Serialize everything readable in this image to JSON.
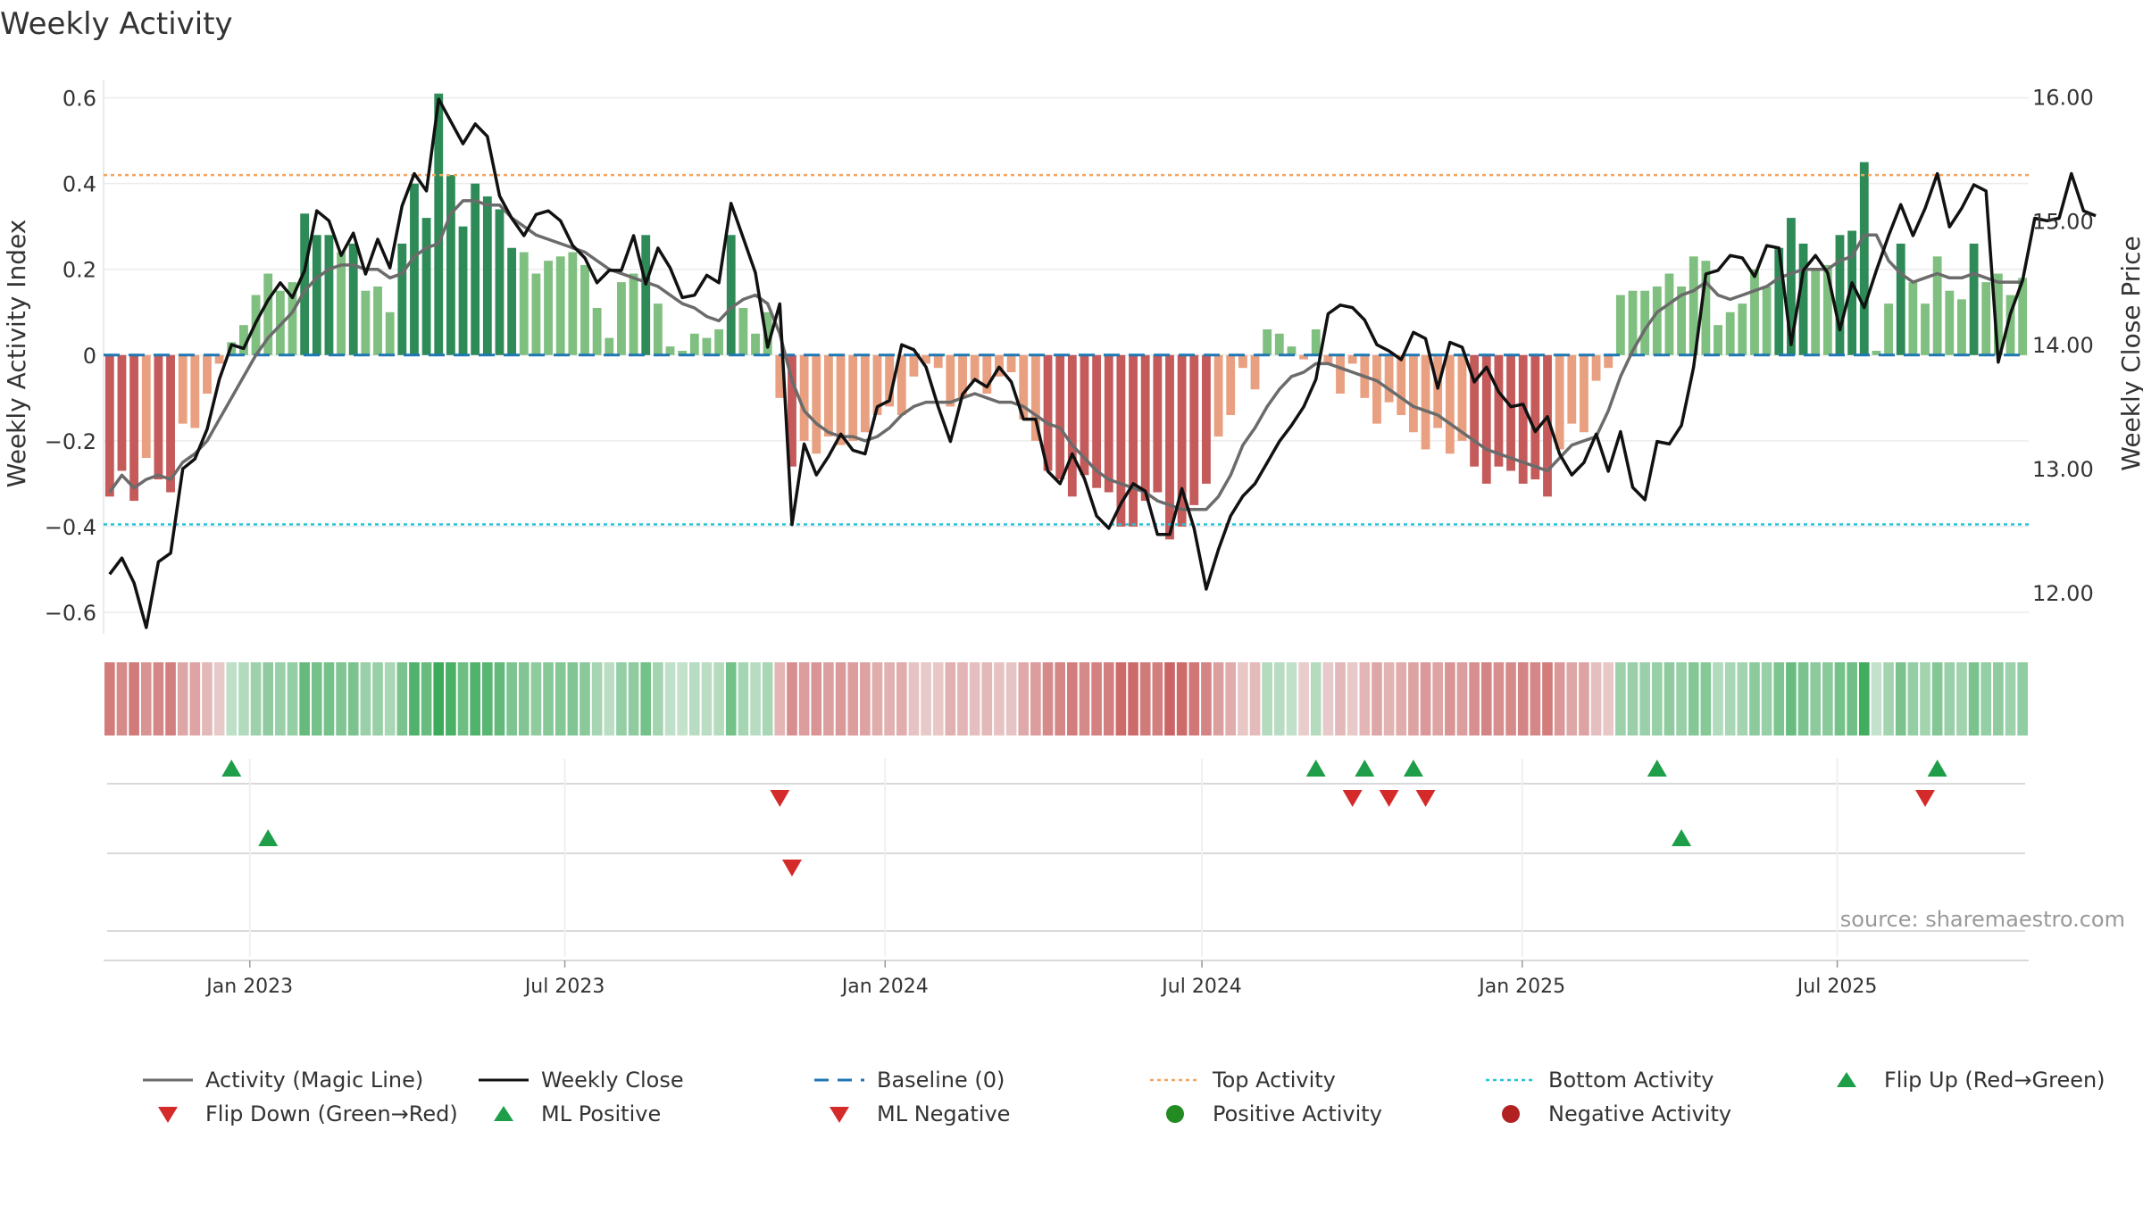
{
  "title": "Weekly Activity",
  "source": "source: sharemaestro.com",
  "colors": {
    "pos_dark": "#2e8b57",
    "pos_light": "#7fbf7f",
    "neg_dark": "#c45a5a",
    "neg_light": "#e8a080",
    "close": "#111111",
    "magic": "#6b6b6b",
    "top": "#f4a460",
    "bottom": "#22c5d6",
    "baseline": "#1f77b4",
    "flip_up": "#1e9e48",
    "flip_down": "#d42a2a",
    "pos_dot": "#228b22",
    "neg_dot": "#b22222"
  },
  "legend": [
    {
      "label": "Activity (Magic Line)",
      "symbol": "magic-line"
    },
    {
      "label": "Weekly Close",
      "symbol": "close-line"
    },
    {
      "label": "Baseline (0)",
      "symbol": "baseline-dash"
    },
    {
      "label": "Top Activity",
      "symbol": "top-dotted"
    },
    {
      "label": "Bottom Activity",
      "symbol": "bottom-dotted"
    },
    {
      "label": "Flip Up (Red→Green)",
      "symbol": "triangle-up"
    },
    {
      "label": "Flip Down (Green→Red)",
      "symbol": "triangle-down"
    },
    {
      "label": "ML Positive",
      "symbol": "triangle-up"
    },
    {
      "label": "ML Negative",
      "symbol": "triangle-down"
    },
    {
      "label": "Positive Activity",
      "symbol": "dot-green"
    },
    {
      "label": "Negative Activity",
      "symbol": "dot-red"
    }
  ],
  "chart_data": {
    "type": "bar",
    "title": "Weekly Activity",
    "ylabel": "Weekly Activity Index",
    "y2label": "Weekly Close Price",
    "ylim": [
      -0.65,
      0.62
    ],
    "y2lim": [
      11.67,
      16.06
    ],
    "yticks": [
      0.6,
      0.4,
      0.2,
      0,
      -0.2,
      -0.4,
      -0.6
    ],
    "ytick_labels": [
      "0.6",
      "0.4",
      "0.2",
      "0",
      "−0.2",
      "−0.4",
      "−0.6"
    ],
    "y2ticks": [
      16,
      15,
      14,
      13,
      12
    ],
    "y2tick_labels": [
      "16.00",
      "15.00",
      "14.00",
      "13.00",
      "12.00"
    ],
    "start_date": "2022-10-09",
    "weeks": 158,
    "x_ticks": [
      {
        "label": "Jan 2023",
        "date": "2023-01-01"
      },
      {
        "label": "Jul 2023",
        "date": "2023-07-01"
      },
      {
        "label": "Jan 2024",
        "date": "2024-01-01"
      },
      {
        "label": "Jul 2024",
        "date": "2024-07-01"
      },
      {
        "label": "Jan 2025",
        "date": "2025-01-01"
      },
      {
        "label": "Jul 2025",
        "date": "2025-07-01"
      }
    ],
    "top_activity": 0.42,
    "bottom_activity": -0.395,
    "baseline": 0,
    "activity": [
      -0.33,
      -0.27,
      -0.34,
      -0.24,
      -0.29,
      -0.32,
      -0.16,
      -0.17,
      -0.09,
      -0.02,
      0.03,
      0.07,
      0.14,
      0.19,
      0.15,
      0.17,
      0.33,
      0.28,
      0.28,
      0.24,
      0.26,
      0.15,
      0.16,
      0.1,
      0.26,
      0.4,
      0.32,
      0.61,
      0.42,
      0.3,
      0.4,
      0.37,
      0.34,
      0.25,
      0.24,
      0.19,
      0.22,
      0.23,
      0.24,
      0.21,
      0.11,
      0.04,
      0.17,
      0.19,
      0.28,
      0.12,
      0.02,
      0.01,
      0.05,
      0.04,
      0.06,
      0.28,
      0.11,
      0.05,
      0.1,
      -0.1,
      -0.26,
      -0.2,
      -0.23,
      -0.19,
      -0.21,
      -0.2,
      -0.18,
      -0.14,
      -0.12,
      -0.14,
      -0.05,
      -0.02,
      -0.03,
      -0.12,
      -0.1,
      -0.06,
      -0.09,
      -0.05,
      -0.04,
      -0.15,
      -0.2,
      -0.27,
      -0.29,
      -0.33,
      -0.28,
      -0.31,
      -0.32,
      -0.4,
      -0.4,
      -0.34,
      -0.32,
      -0.43,
      -0.4,
      -0.35,
      -0.3,
      -0.19,
      -0.14,
      -0.03,
      -0.08,
      0.06,
      0.05,
      0.02,
      -0.01,
      0.06,
      -0.02,
      -0.09,
      -0.02,
      -0.1,
      -0.16,
      -0.11,
      -0.14,
      -0.18,
      -0.22,
      -0.17,
      -0.23,
      -0.2,
      -0.26,
      -0.3,
      -0.26,
      -0.27,
      -0.3,
      -0.29,
      -0.33,
      -0.22,
      -0.16,
      -0.18,
      -0.06,
      -0.03,
      0.14,
      0.15,
      0.15,
      0.16,
      0.19,
      0.16,
      0.23,
      0.22,
      0.07,
      0.1,
      0.12,
      0.2,
      0.16,
      0.25,
      0.32,
      0.26,
      0.2,
      0.21,
      0.28,
      0.29,
      0.45,
      0.01,
      0.12,
      0.26,
      0.17,
      0.12,
      0.23,
      0.15,
      0.13,
      0.26,
      0.17,
      0.19,
      0.14,
      0.18
    ],
    "magic_line": [
      -0.32,
      -0.28,
      -0.31,
      -0.29,
      -0.28,
      -0.29,
      -0.25,
      -0.23,
      -0.2,
      -0.15,
      -0.1,
      -0.05,
      0.0,
      0.04,
      0.07,
      0.1,
      0.15,
      0.18,
      0.2,
      0.21,
      0.21,
      0.2,
      0.2,
      0.18,
      0.19,
      0.23,
      0.25,
      0.26,
      0.33,
      0.36,
      0.36,
      0.35,
      0.35,
      0.32,
      0.3,
      0.28,
      0.27,
      0.26,
      0.25,
      0.24,
      0.22,
      0.2,
      0.19,
      0.18,
      0.17,
      0.16,
      0.14,
      0.12,
      0.11,
      0.09,
      0.08,
      0.11,
      0.13,
      0.14,
      0.12,
      0.05,
      -0.06,
      -0.13,
      -0.16,
      -0.18,
      -0.19,
      -0.19,
      -0.2,
      -0.19,
      -0.17,
      -0.14,
      -0.12,
      -0.11,
      -0.11,
      -0.11,
      -0.1,
      -0.09,
      -0.1,
      -0.11,
      -0.11,
      -0.12,
      -0.14,
      -0.16,
      -0.17,
      -0.21,
      -0.24,
      -0.27,
      -0.29,
      -0.3,
      -0.31,
      -0.32,
      -0.34,
      -0.35,
      -0.36,
      -0.36,
      -0.36,
      -0.33,
      -0.28,
      -0.21,
      -0.17,
      -0.12,
      -0.08,
      -0.05,
      -0.04,
      -0.02,
      -0.02,
      -0.03,
      -0.04,
      -0.05,
      -0.06,
      -0.08,
      -0.1,
      -0.12,
      -0.13,
      -0.14,
      -0.16,
      -0.18,
      -0.2,
      -0.22,
      -0.23,
      -0.24,
      -0.25,
      -0.26,
      -0.27,
      -0.24,
      -0.21,
      -0.2,
      -0.19,
      -0.13,
      -0.05,
      0.01,
      0.06,
      0.1,
      0.12,
      0.14,
      0.15,
      0.17,
      0.14,
      0.13,
      0.14,
      0.15,
      0.16,
      0.18,
      0.19,
      0.2,
      0.2,
      0.2,
      0.22,
      0.23,
      0.28,
      0.28,
      0.22,
      0.19,
      0.17,
      0.18,
      0.19,
      0.18,
      0.18,
      0.19,
      0.18,
      0.17,
      0.17,
      0.17
    ],
    "close": [
      12.15,
      12.28,
      12.08,
      11.72,
      12.25,
      12.32,
      13.0,
      13.08,
      13.32,
      13.72,
      14.0,
      13.97,
      14.18,
      14.36,
      14.5,
      14.38,
      14.6,
      15.08,
      15.0,
      14.72,
      14.9,
      14.57,
      14.85,
      14.62,
      15.12,
      15.38,
      15.24,
      15.98,
      15.8,
      15.62,
      15.78,
      15.68,
      15.2,
      15.02,
      14.88,
      15.05,
      15.08,
      15.0,
      14.8,
      14.7,
      14.5,
      14.6,
      14.6,
      14.88,
      14.49,
      14.78,
      14.62,
      14.38,
      14.4,
      14.56,
      14.5,
      15.14,
      14.86,
      14.58,
      13.98,
      14.33,
      12.55,
      13.2,
      12.95,
      13.1,
      13.28,
      13.15,
      13.12,
      13.5,
      13.55,
      14.0,
      13.96,
      13.82,
      13.5,
      13.22,
      13.6,
      13.72,
      13.66,
      13.82,
      13.7,
      13.4,
      13.4,
      12.98,
      12.88,
      13.12,
      12.92,
      12.62,
      12.52,
      12.72,
      12.88,
      12.82,
      12.47,
      12.47,
      12.84,
      12.52,
      12.03,
      12.35,
      12.62,
      12.78,
      12.88,
      13.05,
      13.22,
      13.35,
      13.5,
      13.72,
      14.25,
      14.32,
      14.3,
      14.2,
      14.0,
      13.95,
      13.88,
      14.1,
      14.05,
      13.65,
      14.02,
      13.98,
      13.7,
      13.82,
      13.62,
      13.5,
      13.52,
      13.3,
      13.42,
      13.12,
      12.95,
      13.05,
      13.28,
      12.98,
      13.3,
      12.85,
      12.75,
      13.22,
      13.2,
      13.35,
      13.82,
      14.57,
      14.6,
      14.72,
      14.7,
      14.55,
      14.8,
      14.78,
      14.0,
      14.6,
      14.72,
      14.58,
      14.12,
      14.5,
      14.3,
      14.6,
      14.88,
      15.13,
      14.88,
      15.1,
      15.38,
      14.95,
      15.1,
      15.29,
      15.24,
      13.86,
      14.25,
      14.52,
      15.02,
      15.0,
      15.02,
      15.38,
      15.08,
      15.04
    ],
    "flip_up_weeks": [
      10,
      99,
      103,
      107,
      127,
      150
    ],
    "flip_down_weeks": [
      55,
      102,
      105,
      108,
      149
    ],
    "ml_positive_weeks": [
      13,
      129
    ],
    "ml_negative_weeks": [
      56
    ]
  }
}
